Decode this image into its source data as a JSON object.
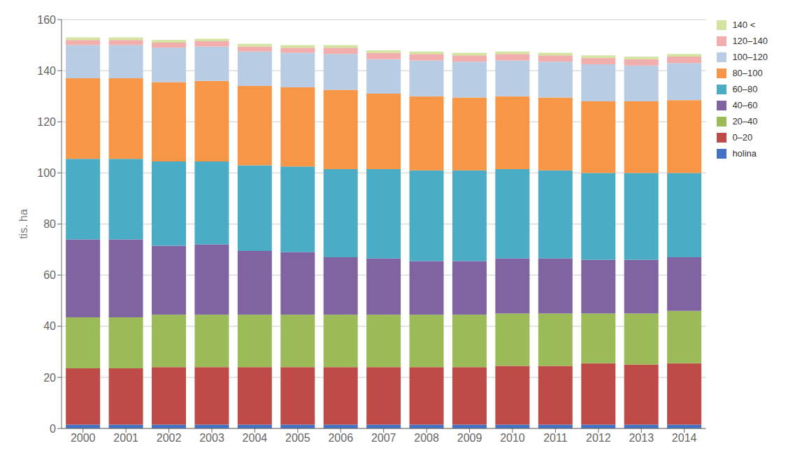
{
  "chart_data": {
    "type": "bar",
    "stacked": true,
    "ylabel": "tis. ha",
    "categories": [
      "2000",
      "2001",
      "2002",
      "2003",
      "2004",
      "2005",
      "2006",
      "2007",
      "2008",
      "2009",
      "2010",
      "2011",
      "2012",
      "2013",
      "2014"
    ],
    "series": [
      {
        "name": "holina",
        "color": "#4472C4",
        "values": [
          1.5,
          1.5,
          1.5,
          1.5,
          1.5,
          1.5,
          1.5,
          1.5,
          1.5,
          1.5,
          1.5,
          1.5,
          1.5,
          1.5,
          1.5
        ]
      },
      {
        "name": "0–20",
        "color": "#BE4B48",
        "values": [
          22.0,
          22.0,
          22.5,
          22.5,
          22.5,
          22.5,
          22.5,
          22.5,
          22.5,
          22.5,
          23.0,
          23.0,
          24.0,
          23.5,
          24.0
        ]
      },
      {
        "name": "20–40",
        "color": "#9BBB59",
        "values": [
          20.0,
          20.0,
          20.5,
          20.5,
          20.5,
          20.5,
          20.5,
          20.5,
          20.5,
          20.5,
          20.5,
          20.5,
          19.5,
          20.0,
          20.5
        ]
      },
      {
        "name": "40–60",
        "color": "#8064A2",
        "values": [
          30.5,
          30.5,
          27.0,
          27.5,
          25.0,
          24.5,
          22.5,
          22.0,
          21.0,
          21.0,
          21.5,
          21.5,
          21.0,
          21.0,
          21.0
        ]
      },
      {
        "name": "60–80",
        "color": "#4BACC6",
        "values": [
          31.5,
          31.5,
          33.0,
          32.5,
          33.5,
          33.5,
          34.5,
          35.0,
          35.5,
          35.5,
          35.0,
          34.5,
          34.0,
          34.0,
          33.0
        ]
      },
      {
        "name": "80–100",
        "color": "#F79646",
        "values": [
          31.5,
          31.5,
          31.0,
          31.5,
          31.0,
          31.0,
          31.0,
          29.5,
          29.0,
          28.5,
          28.5,
          28.5,
          28.0,
          28.0,
          28.5
        ]
      },
      {
        "name": "100–120",
        "color": "#B8CCE4",
        "values": [
          13.0,
          13.0,
          13.5,
          13.5,
          13.5,
          13.5,
          14.0,
          13.5,
          14.0,
          14.0,
          14.0,
          14.0,
          14.5,
          14.0,
          14.5
        ]
      },
      {
        "name": "120–140",
        "color": "#F2AEAC",
        "values": [
          2.0,
          2.0,
          2.0,
          2.0,
          2.0,
          2.0,
          2.5,
          2.5,
          2.5,
          2.5,
          2.5,
          2.5,
          2.5,
          2.5,
          2.5
        ]
      },
      {
        "name": "140 <",
        "color": "#D3E4A0",
        "values": [
          1.0,
          1.0,
          1.0,
          1.0,
          1.0,
          1.0,
          1.0,
          1.0,
          1.0,
          1.0,
          1.0,
          1.0,
          1.0,
          1.0,
          1.0
        ]
      }
    ],
    "ylim": [
      0,
      160
    ],
    "yticks": [
      0,
      20,
      40,
      60,
      80,
      100,
      120,
      140,
      160
    ],
    "grid": true,
    "legend": "right"
  }
}
